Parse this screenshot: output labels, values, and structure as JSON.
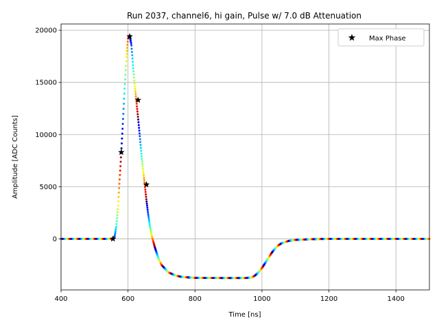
{
  "chart_data": {
    "type": "scatter",
    "title": "Run 2037, channel6, hi gain, Pulse w/ 7.0 dB Attenuation",
    "xlabel": "Time [ns]",
    "ylabel": "Amplitude [ADC Counts]",
    "xlim": [
      400,
      1500
    ],
    "ylim": [
      -4900,
      20600
    ],
    "xticks": [
      400,
      600,
      800,
      1000,
      1200,
      1400
    ],
    "yticks": [
      0,
      5000,
      10000,
      15000,
      20000
    ],
    "grid": true,
    "legend_position": "top-right",
    "colormap": "jet",
    "pulse_waveform": {
      "x": [
        400,
        540,
        550,
        555,
        560,
        565,
        570,
        575,
        580,
        585,
        590,
        595,
        600,
        605,
        610,
        615,
        620,
        625,
        630,
        635,
        640,
        645,
        650,
        655,
        660,
        665,
        670,
        680,
        690,
        700,
        720,
        740,
        760,
        780,
        800,
        850,
        900,
        950,
        970,
        980,
        990,
        1000,
        1010,
        1020,
        1030,
        1040,
        1050,
        1060,
        1080,
        1100,
        1150,
        1200,
        1300,
        1400,
        1500
      ],
      "y": [
        0,
        0,
        0,
        0,
        200,
        1200,
        3000,
        5700,
        8400,
        11400,
        14500,
        17300,
        19200,
        19500,
        18600,
        16600,
        14700,
        13200,
        11600,
        9900,
        8100,
        6600,
        5200,
        3700,
        2400,
        1300,
        400,
        -800,
        -1800,
        -2500,
        -3200,
        -3500,
        -3650,
        -3700,
        -3740,
        -3750,
        -3760,
        -3760,
        -3700,
        -3500,
        -3200,
        -2800,
        -2300,
        -1800,
        -1300,
        -900,
        -600,
        -400,
        -200,
        -100,
        -30,
        0,
        0,
        0,
        0
      ]
    },
    "series": [
      {
        "name": "Max Phase",
        "marker": "star",
        "color": "#000000",
        "x": [
          555,
          580,
          605,
          630,
          655
        ],
        "y": [
          0,
          8300,
          19400,
          13300,
          5200
        ]
      }
    ]
  }
}
